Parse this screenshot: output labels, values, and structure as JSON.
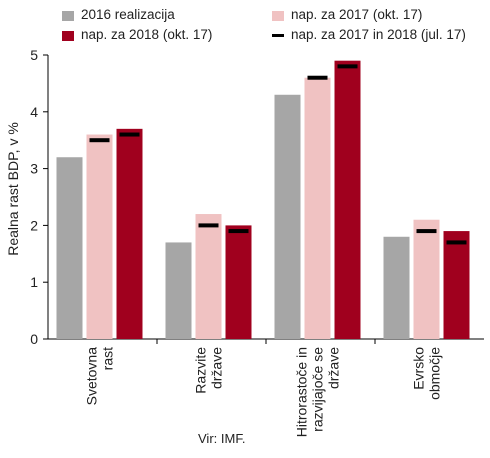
{
  "chart_data": {
    "type": "bar",
    "ylabel": "Realna rast BDP, v %",
    "ylim": [
      0,
      5
    ],
    "yticks": [
      0,
      1,
      2,
      3,
      4,
      5
    ],
    "grid": false,
    "legend_position": "top",
    "categories": [
      [
        "Svetovna",
        "rast"
      ],
      [
        "Razvite",
        "države"
      ],
      [
        "Hitrorastoče in",
        "razvijajoče se",
        "države"
      ],
      [
        "Evrsko",
        "območje"
      ]
    ],
    "series": [
      {
        "name": "2016 realizacija",
        "color": "#a6a6a6",
        "values": [
          3.2,
          1.7,
          4.3,
          1.8
        ]
      },
      {
        "name": "nap. za 2017 (okt. 17)",
        "color": "#f0c2c2",
        "values": [
          3.6,
          2.2,
          4.6,
          2.1
        ]
      },
      {
        "name": "nap. za 2018 (okt. 17)",
        "color": "#a0001e",
        "values": [
          3.7,
          2.0,
          4.9,
          1.9
        ]
      }
    ],
    "markers": {
      "name": "nap. za 2017 in 2018 (jul. 17)",
      "color": "#000000",
      "series_2017": [
        3.5,
        2.0,
        4.6,
        1.9
      ],
      "series_2018": [
        3.6,
        1.9,
        4.8,
        1.7
      ]
    },
    "source": "Vir: IMF."
  }
}
